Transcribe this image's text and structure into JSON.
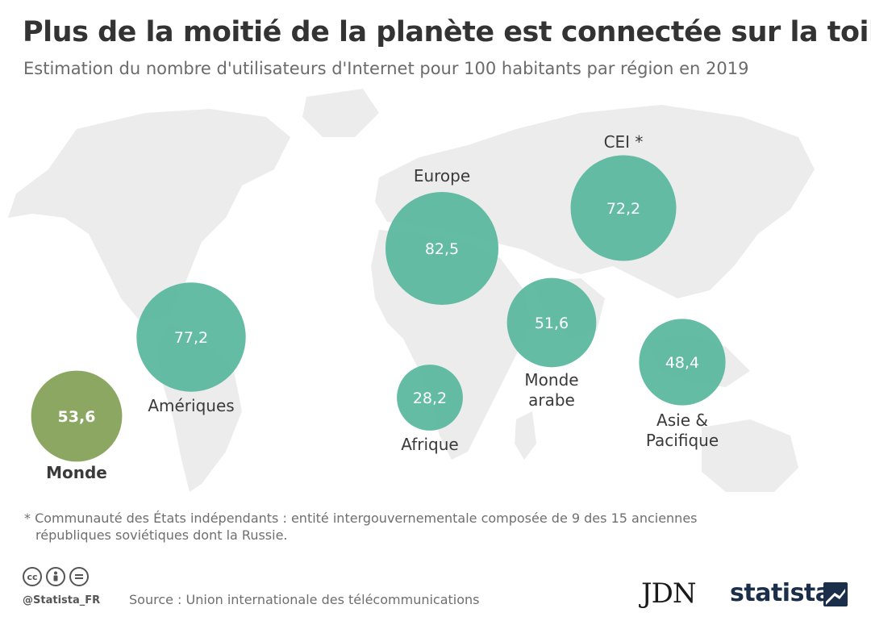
{
  "chart_data": {
    "type": "bubble-map",
    "title": "Plus de la moitié de la planète est connectée sur la toile",
    "subtitle": "Estimation du nombre d'utilisateurs d'Internet pour 100 habitants par région en 2019",
    "regions": [
      {
        "label": "Europe",
        "value": 82.5,
        "value_text": "82,5",
        "color": "#5cb8a0"
      },
      {
        "label": "Amériques",
        "value": 77.2,
        "value_text": "77,2",
        "color": "#5cb8a0"
      },
      {
        "label": "CEI *",
        "value": 72.2,
        "value_text": "72,2",
        "color": "#5cb8a0"
      },
      {
        "label": "Monde",
        "value": 53.6,
        "value_text": "53,6",
        "color": "#86a25a"
      },
      {
        "label": "Monde arabe",
        "value": 51.6,
        "value_text": "51,6",
        "color": "#5cb8a0"
      },
      {
        "label": "Asie & Pacifique",
        "value": 48.4,
        "value_text": "48,4",
        "color": "#5cb8a0"
      },
      {
        "label": "Afrique",
        "value": 28.2,
        "value_text": "28,2",
        "color": "#5cb8a0"
      }
    ]
  },
  "footnote": {
    "line1": "* Communauté des États indépendants : entité intergouvernementale composée de 9 des 15 anciennes",
    "line2": "républiques soviétiques dont la Russie."
  },
  "footer": {
    "handle": "@Statista_FR",
    "source": "Source :  Union internationale des télécommunications",
    "jdn_logo": "JDN",
    "statista_logo": "statista",
    "cc_icons": [
      "cc-icon",
      "by-icon",
      "nd-icon"
    ]
  },
  "map_color": "#ececec"
}
